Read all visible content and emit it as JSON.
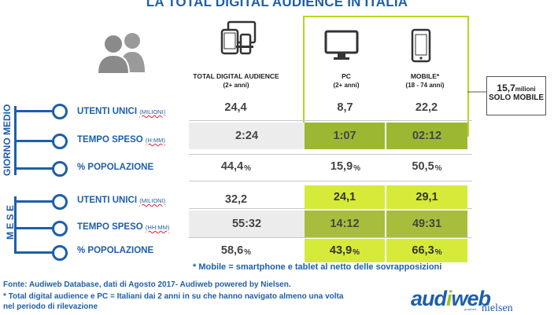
{
  "title": "LA TOTAL DIGITAL AUDIENCE IN ITALIA",
  "columns": [
    {
      "label": "TOTAL DIGITAL AUDIENCE",
      "sub": "(2+ anni)",
      "icon": "devices-icon"
    },
    {
      "label": "PC",
      "sub": "(2+ anni)",
      "icon": "monitor-icon"
    },
    {
      "label": "MOBILE*",
      "sub": "(18 - 74 anni)",
      "icon": "smartphone-icon"
    }
  ],
  "callout": {
    "value": "15,7",
    "unit": "milioni",
    "label": "SOLO MOBILE"
  },
  "sections": [
    {
      "label": "GIORNO MEDIO",
      "rows": [
        {
          "label": "UTENTI UNICI",
          "unit": "(MILIONI)",
          "values": [
            "24,4",
            "8,7",
            "22,2"
          ],
          "pct": [
            "",
            "",
            ""
          ]
        },
        {
          "label": "TEMPO SPESO",
          "unit": "(H:MM)",
          "values": [
            "2:24",
            "1:07",
            "02:12"
          ],
          "pct": [
            "",
            "",
            ""
          ]
        },
        {
          "label": "% POPOLAZIONE",
          "unit": "",
          "values": [
            "44,4",
            "15,9",
            "50,5"
          ],
          "pct": [
            "%",
            "%",
            "%"
          ]
        }
      ]
    },
    {
      "label": "M E S E",
      "rows": [
        {
          "label": "UTENTI UNICI",
          "unit": "(MILIONI)",
          "values": [
            "32,2",
            "24,1",
            "29,1"
          ],
          "pct": [
            "",
            "",
            ""
          ]
        },
        {
          "label": "TEMPO SPESO",
          "unit": "(HH:MM)",
          "values": [
            "55:32",
            "14:12",
            "49:31"
          ],
          "pct": [
            "",
            "",
            ""
          ]
        },
        {
          "label": "% POPOLAZIONE",
          "unit": "",
          "values": [
            "58,6",
            "43,9",
            "66,3"
          ],
          "pct": [
            "%",
            "%",
            "%"
          ]
        }
      ]
    }
  ],
  "mobile_note": "* Mobile = smartphone e tablet al netto delle sovrapposizioni",
  "footnotes": [
    "Fonte: Audiweb Database, dati di Agosto 2017- Audiweb powered by Nielsen.",
    "* Total digital audience e PC = Italiani dai 2 anni in su che hanno navigato almeno una volta",
    "nel periodo di rilevazione"
  ],
  "logo": {
    "main_a": "aud",
    "main_b": "i",
    "main_c": "web",
    "powered": "powered",
    "partner": "nielsen"
  },
  "colors": {
    "blue": "#1e5fa8",
    "dark_green": "#9cb833",
    "light_green": "#d6ea3a",
    "gray": "#ececec"
  }
}
